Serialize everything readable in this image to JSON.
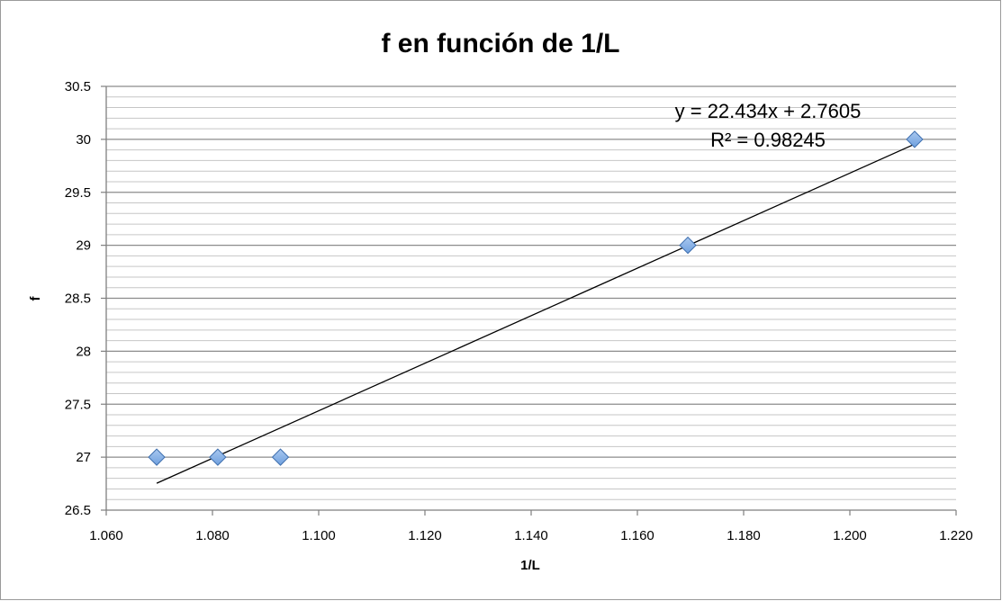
{
  "chart_data": {
    "type": "scatter",
    "title": "f en función de 1/L",
    "xlabel": "1/L",
    "ylabel": "f",
    "xlim": [
      1.06,
      1.22
    ],
    "ylim": [
      26.5,
      30.5
    ],
    "x_ticks": [
      "1.060",
      "1.080",
      "1.100",
      "1.120",
      "1.140",
      "1.160",
      "1.180",
      "1.200",
      "1.220"
    ],
    "y_ticks": [
      "30.5",
      "30",
      "29.5",
      "29",
      "28.5",
      "28",
      "27.5",
      "27",
      "26.5"
    ],
    "grid": {
      "major_y": true,
      "minor_y": true,
      "x": false
    },
    "legend": "none",
    "series": [
      {
        "points": [
          {
            "x": 1.0695,
            "y": 27
          },
          {
            "x": 1.081,
            "y": 27
          },
          {
            "x": 1.0928,
            "y": 27
          },
          {
            "x": 1.1695,
            "y": 29
          },
          {
            "x": 1.2122,
            "y": 30
          }
        ],
        "marker": "diamond",
        "color": "#6fa0de"
      }
    ],
    "trendline": {
      "type": "linear",
      "slope": 22.434,
      "intercept": 2.7605,
      "x_range": [
        1.0695,
        1.2122
      ],
      "color": "#000000"
    },
    "annotations": {
      "equation": "y = 22.434x + 2.7605",
      "r_squared": "R² = 0.98245"
    }
  }
}
